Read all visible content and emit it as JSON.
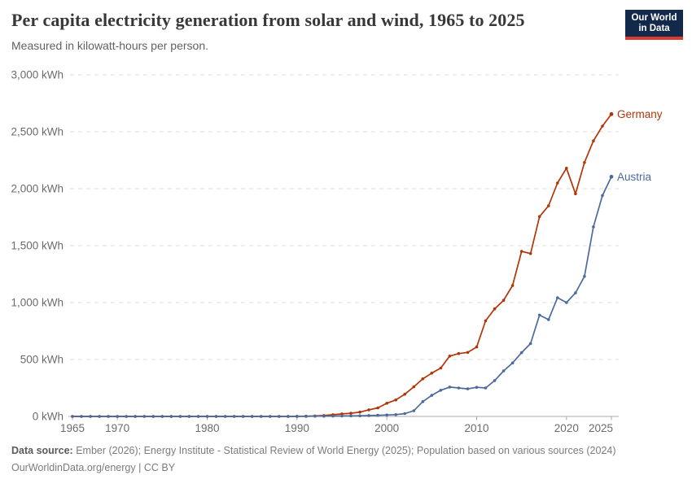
{
  "header": {
    "title": "Per capita electricity generation from solar and wind, 1965 to 2025",
    "subtitle": "Measured in kilowatt-hours per person."
  },
  "logo": {
    "line1": "Our World",
    "line2": "in Data",
    "bg_color": "#12294b",
    "accent_color": "#d93a34"
  },
  "chart_data": {
    "type": "line",
    "title": "Per capita electricity generation from solar and wind, 1965 to 2025",
    "xlabel": "",
    "ylabel": "kilowatt-hours per person",
    "x_range": [
      1965,
      2025
    ],
    "ylim": [
      0,
      3000
    ],
    "grid": "horizontal-dashed",
    "grid_color": "#dcdcdc",
    "axis_color": "#a8a8a8",
    "tick_label_color": "#6b6b6b",
    "legend_position": "end-of-line-labels",
    "years": [
      1965,
      1966,
      1967,
      1968,
      1969,
      1970,
      1971,
      1972,
      1973,
      1974,
      1975,
      1976,
      1977,
      1978,
      1979,
      1980,
      1981,
      1982,
      1983,
      1984,
      1985,
      1986,
      1987,
      1988,
      1989,
      1990,
      1991,
      1992,
      1993,
      1994,
      1995,
      1996,
      1997,
      1998,
      1999,
      2000,
      2001,
      2002,
      2003,
      2004,
      2005,
      2006,
      2007,
      2008,
      2009,
      2010,
      2011,
      2012,
      2013,
      2014,
      2015,
      2016,
      2017,
      2018,
      2019,
      2020,
      2021,
      2022,
      2023,
      2024,
      2025
    ],
    "series": [
      {
        "name": "Germany",
        "color": "#b13507",
        "values": [
          0,
          0,
          0,
          0,
          0,
          0,
          0,
          0,
          0,
          0,
          0,
          0,
          0,
          0,
          0,
          0,
          0,
          0,
          0,
          0,
          0,
          0,
          0,
          0,
          0,
          1,
          2,
          4,
          8,
          15,
          22,
          28,
          38,
          58,
          75,
          116,
          145,
          195,
          260,
          330,
          380,
          425,
          530,
          552,
          562,
          610,
          840,
          945,
          1020,
          1150,
          1450,
          1430,
          1755,
          1850,
          2050,
          2180,
          1955,
          2230,
          2420,
          2550,
          2655
        ]
      },
      {
        "name": "Austria",
        "color": "#4c6a9c",
        "values": [
          0,
          0,
          0,
          0,
          0,
          0,
          0,
          0,
          0,
          0,
          0,
          0,
          0,
          0,
          0,
          0,
          0,
          0,
          0,
          0,
          0,
          0,
          0,
          0,
          0,
          1,
          1,
          2,
          2,
          3,
          4,
          5,
          6,
          8,
          10,
          13,
          16,
          25,
          50,
          130,
          185,
          230,
          258,
          250,
          242,
          256,
          250,
          315,
          400,
          470,
          560,
          640,
          890,
          850,
          1043,
          1000,
          1085,
          1230,
          1665,
          1940,
          2105
        ]
      }
    ],
    "yticks": [
      {
        "value": 0,
        "label": "0 kWh"
      },
      {
        "value": 500,
        "label": "500 kWh"
      },
      {
        "value": 1000,
        "label": "1,000 kWh"
      },
      {
        "value": 1500,
        "label": "1,500 kWh"
      },
      {
        "value": 2000,
        "label": "2,000 kWh"
      },
      {
        "value": 2500,
        "label": "2,500 kWh"
      },
      {
        "value": 3000,
        "label": "3,000 kWh"
      }
    ],
    "xticks": [
      {
        "value": 1965,
        "label": "1965"
      },
      {
        "value": 1970,
        "label": "1970"
      },
      {
        "value": 1980,
        "label": "1980"
      },
      {
        "value": 1990,
        "label": "1990"
      },
      {
        "value": 2000,
        "label": "2000"
      },
      {
        "value": 2010,
        "label": "2010"
      },
      {
        "value": 2020,
        "label": "2020"
      },
      {
        "value": 2025,
        "label": "2025"
      }
    ]
  },
  "footer": {
    "source_label": "Data source:",
    "source_text": "Ember (2026); Energy Institute - Statistical Review of World Energy (2025); Population based on various sources (2024)",
    "link_text": "OurWorldinData.org/energy",
    "divider": "|",
    "license_text": "CC BY"
  }
}
